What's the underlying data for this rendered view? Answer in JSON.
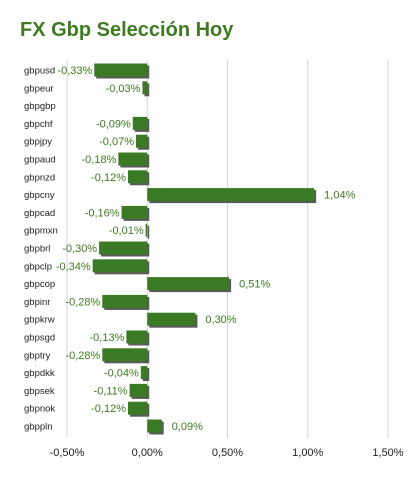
{
  "title": "FX Gbp Selección Hoy",
  "colors": {
    "bar": "#3a7a24",
    "bar_shadow": "#5a5a5a",
    "label": "#3e7a20",
    "grid": "#d4d4d4"
  },
  "chart_data": {
    "type": "bar",
    "orientation": "horizontal",
    "title": "FX Gbp Selección Hoy",
    "categories": [
      "gbpusd",
      "gbpeur",
      "gbpgbp",
      "gbpchf",
      "gbpjpy",
      "gbpaud",
      "gbpnzd",
      "gbpcny",
      "gbpcad",
      "gbpmxn",
      "gbpbrl",
      "gbpclp",
      "gbpcop",
      "gbpinr",
      "gbpkrw",
      "gbpsgd",
      "gbptry",
      "gbpdkk",
      "gbpsek",
      "gbpnok",
      "gbppln"
    ],
    "values": [
      -0.33,
      -0.03,
      null,
      -0.09,
      -0.07,
      -0.18,
      -0.12,
      1.04,
      -0.16,
      -0.01,
      -0.3,
      -0.34,
      0.51,
      -0.28,
      0.3,
      -0.13,
      -0.28,
      -0.04,
      -0.11,
      -0.12,
      0.09
    ],
    "value_labels": [
      "-0,33%",
      "-0,03%",
      "",
      "-0,09%",
      "-0,07%",
      "-0,18%",
      "-0,12%",
      "1,04%",
      "-0,16%",
      "-0,01%",
      "-0,30%",
      "-0,34%",
      "0,51%",
      "-0,28%",
      "0,30%",
      "-0,13%",
      "-0,28%",
      "-0,04%",
      "-0,11%",
      "-0,12%",
      "0,09%"
    ],
    "xlim": [
      -0.5,
      1.5
    ],
    "xticks": [
      -0.5,
      0,
      0.5,
      1.0,
      1.5
    ],
    "xtick_labels": [
      "-0,50%",
      "0,00%",
      "0,50%",
      "1,00%",
      "1,50%"
    ],
    "grid": "vertical",
    "legend": "none"
  }
}
